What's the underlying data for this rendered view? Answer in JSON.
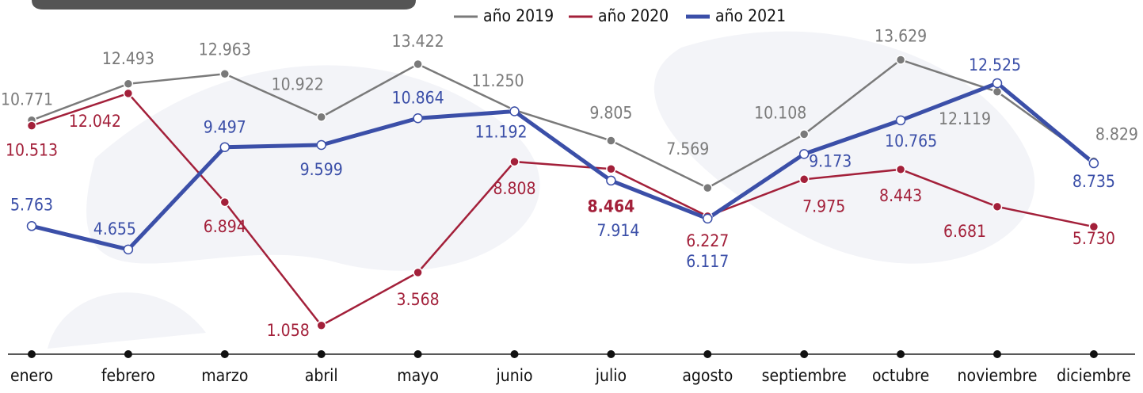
{
  "chart_data": {
    "type": "line",
    "categories": [
      "enero",
      "febrero",
      "marzo",
      "abril",
      "mayo",
      "junio",
      "julio",
      "agosto",
      "septiembre",
      "octubre",
      "noviembre",
      "diciembre"
    ],
    "series": [
      {
        "name": "año 2019",
        "color": "#7a7a7a",
        "values": [
          10771,
          12493,
          12963,
          10922,
          13422,
          11250,
          9805,
          7569,
          10108,
          13629,
          12119,
          8829
        ],
        "value_labels": [
          "10.771",
          "12.493",
          "12.963",
          "10.922",
          "13.422",
          "11.250",
          "9.805",
          "7.569",
          "10.108",
          "13.629",
          "12.119",
          "8.829"
        ]
      },
      {
        "name": "año 2020",
        "color": "#a3203a",
        "values": [
          10513,
          12042,
          6894,
          1058,
          3568,
          8808,
          8464,
          6227,
          7975,
          8443,
          6681,
          5730
        ],
        "value_labels": [
          "10.513",
          "12.042",
          "6.894",
          "1.058",
          "3.568",
          "8.808",
          "8.464",
          "6.227",
          "7.975",
          "8.443",
          "6.681",
          "5.730"
        ]
      },
      {
        "name": "año 2021",
        "color": "#3b4fa8",
        "values": [
          5763,
          4655,
          9497,
          9599,
          10864,
          11192,
          7914,
          6117,
          9173,
          10765,
          12525,
          8735
        ],
        "value_labels": [
          "5.763",
          "4.655",
          "9.497",
          "9.599",
          "10.864",
          "11.192",
          "7.914",
          "6.117",
          "9.173",
          "10.765",
          "12.525",
          "8.735"
        ]
      }
    ]
  }
}
